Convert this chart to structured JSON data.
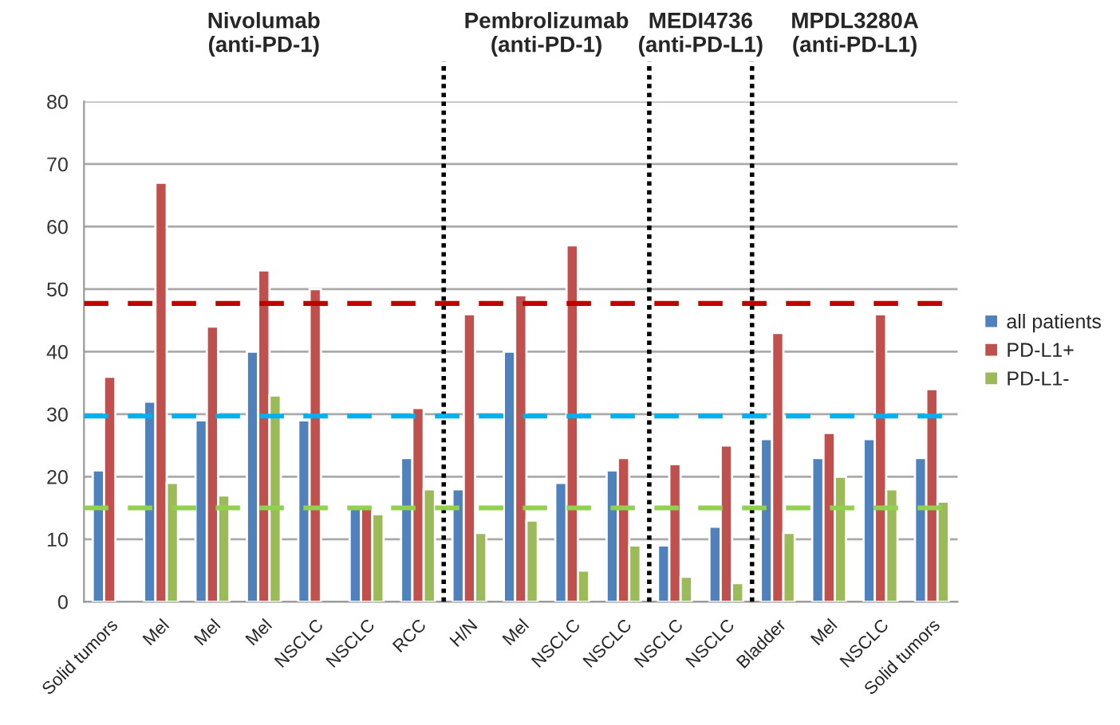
{
  "chart_data": {
    "type": "bar",
    "categories": [
      "Solid tumors",
      "Mel",
      "Mel",
      "Mel",
      "NSCLC",
      "NSCLC",
      "RCC",
      "H/N",
      "Mel",
      "NSCLC",
      "NSCLC",
      "NSCLC",
      "NSCLC",
      "Bladder",
      "Mel",
      "NSCLC",
      "Solid tumors"
    ],
    "series": [
      {
        "name": "all patients",
        "color": "#4f81bd",
        "values": [
          21,
          32,
          29,
          40,
          29,
          15,
          23,
          18,
          40,
          19,
          21,
          9,
          12,
          26,
          23,
          26,
          23
        ]
      },
      {
        "name": "PD-L1+",
        "color": "#c0504d",
        "values": [
          36,
          67,
          44,
          53,
          50,
          15,
          31,
          46,
          49,
          57,
          23,
          22,
          25,
          43,
          27,
          46,
          34
        ]
      },
      {
        "name": "PD-L1-",
        "color": "#9bbb59",
        "values": [
          null,
          19,
          17,
          33,
          null,
          14,
          18,
          11,
          13,
          5,
          9,
          4,
          3,
          11,
          20,
          18,
          16
        ]
      }
    ],
    "ylim": [
      0,
      80
    ],
    "yticks": [
      0,
      10,
      20,
      30,
      40,
      50,
      60,
      70,
      80
    ],
    "grid": "y",
    "legend": "right",
    "ref_lines": [
      {
        "axis": "y",
        "value": 47.7,
        "color": "#c00000",
        "line_style": "dashed"
      },
      {
        "axis": "y",
        "value": 29.7,
        "color": "#00b0f0",
        "line_style": "dashed"
      },
      {
        "axis": "y",
        "value": 15,
        "color": "#92d050",
        "line_style": "dashed"
      }
    ],
    "annotations": [
      "Nivolumab\n(anti-PD-1)",
      "Pembrolizumab\n(anti-PD-1)",
      "MEDI4736\n(anti-PD-L1)",
      "MPDL3280A\n(anti-PD-L1)"
    ]
  }
}
